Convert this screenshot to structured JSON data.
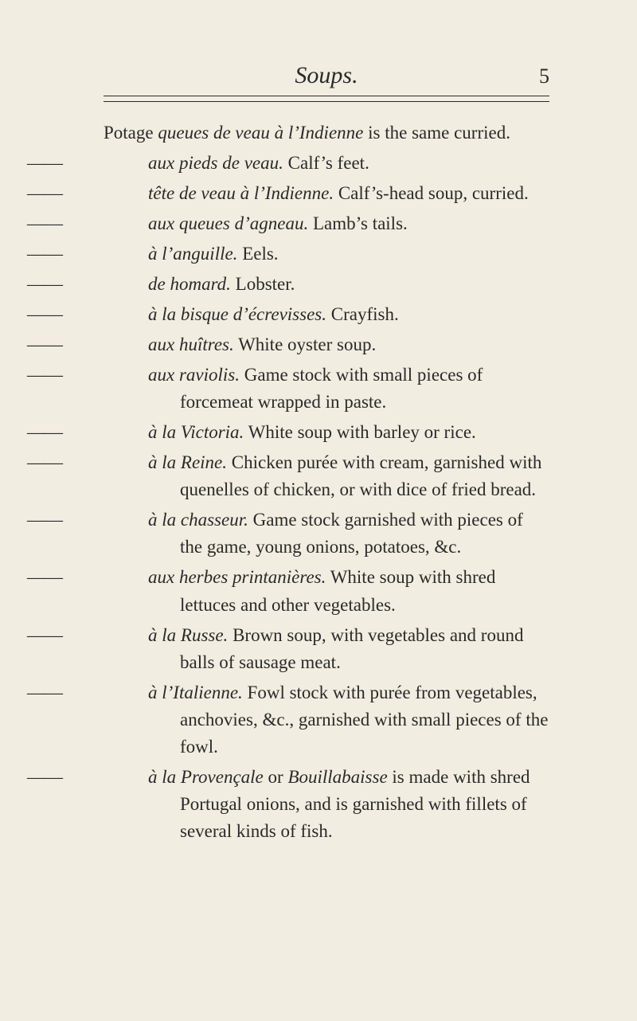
{
  "header": {
    "title": "Soups.",
    "page_number": "5"
  },
  "lead_entry": {
    "label_prefix": "Potage",
    "ital": " queues de veau à l’Indienne",
    "rest": " is the same curried."
  },
  "entries": [
    {
      "ital": "aux pieds de veau.",
      "rest": "  Calf’s feet."
    },
    {
      "ital": "tête de veau à l’Indienne.",
      "rest": "  Calf’s-head soup, curried."
    },
    {
      "ital": "aux queues d’agneau.",
      "rest": "  Lamb’s tails."
    },
    {
      "ital": "à l’anguille.",
      "rest": "  Eels."
    },
    {
      "ital": "de homard.",
      "rest": "  Lobster."
    },
    {
      "ital": "à la bisque d’écrevisses.",
      "rest": "  Crayfish."
    },
    {
      "ital": "aux huîtres.",
      "rest": "  White oyster soup."
    },
    {
      "ital": "aux raviolis.",
      "rest": "  Game stock with small pieces of forcemeat wrapped in paste."
    },
    {
      "ital": "à la Victoria.",
      "rest": "  White soup with barley or rice."
    },
    {
      "ital": "à la Reine.",
      "rest": "  Chicken purée with cream, garnished with quenelles of chicken, or with dice of fried bread."
    },
    {
      "ital": "à la chasseur.",
      "rest": "  Game stock garnished with pieces of the game, young onions, potatoes, &c."
    },
    {
      "ital": "aux herbes printanières.",
      "rest": "  White soup with shred lettuces and other vegetables."
    },
    {
      "ital": "à la Russe.",
      "rest": "  Brown soup, with vegetables and round balls of sausage meat."
    },
    {
      "ital": "à l’Italienne.",
      "rest": "  Fowl stock with purée from vegetables, anchovies, &c., garnished with small pieces of the fowl."
    },
    {
      "ital_a": "à la Provençale",
      "mid": " or ",
      "ital_b": "Bouillabaisse",
      "rest": " is made with shred Portugal onions, and is garnished with fillets of several kinds of fish."
    }
  ],
  "dash": "——"
}
